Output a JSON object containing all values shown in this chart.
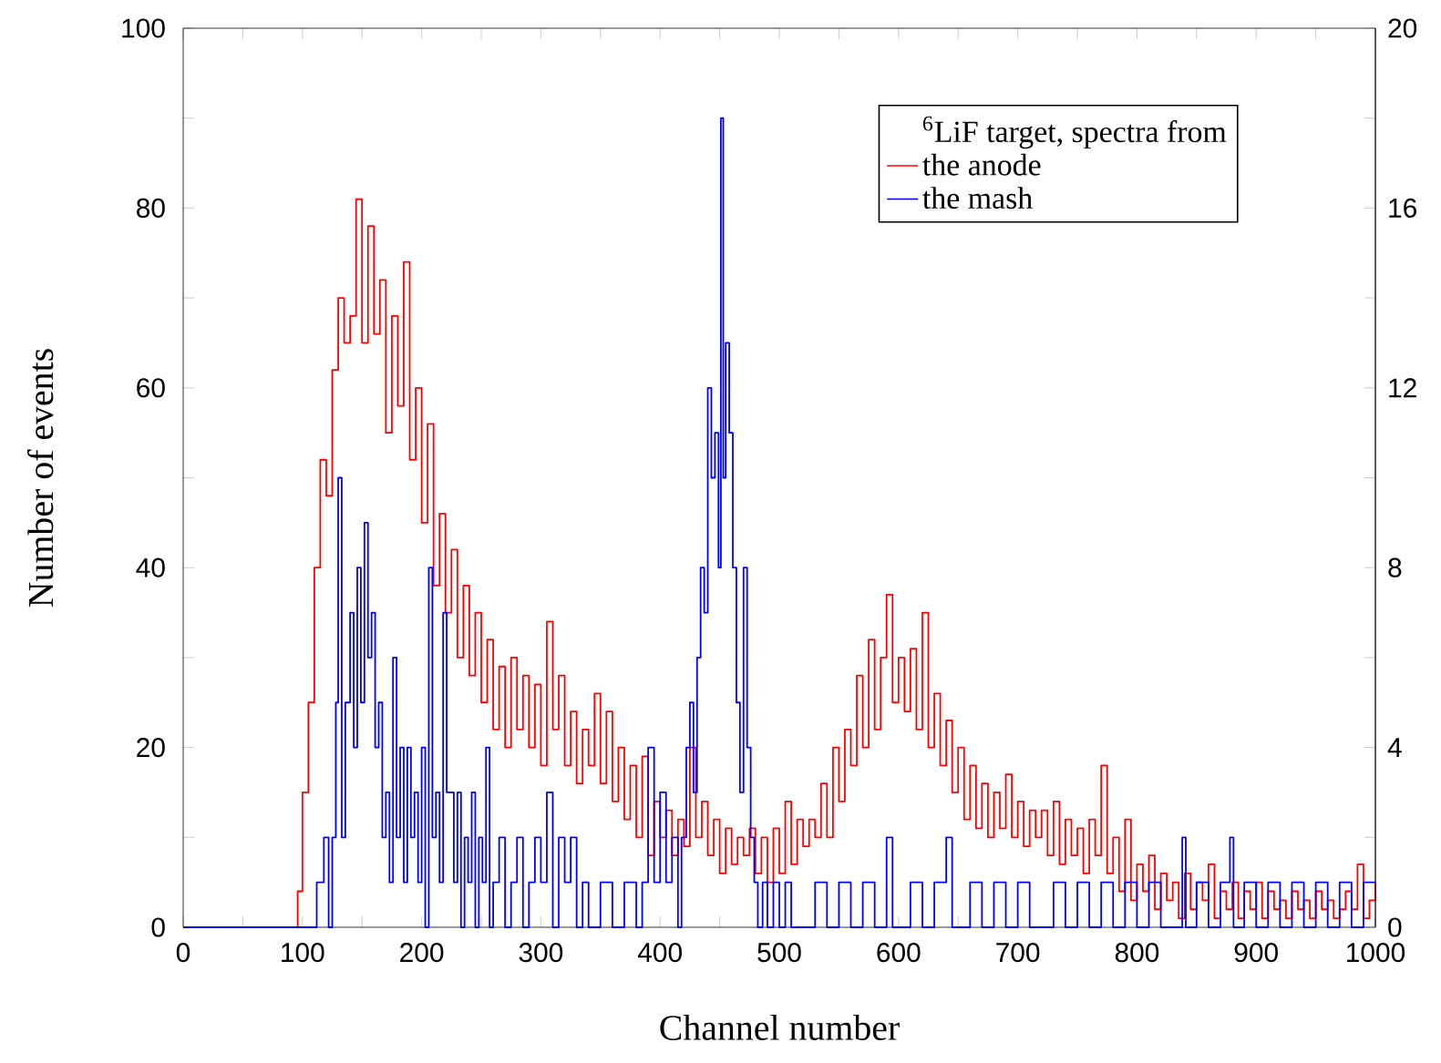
{
  "chart_data": {
    "type": "step",
    "xlabel": "Channel number",
    "ylabel": "Number of events",
    "legend_title": "$^{6}$LiF target, spectra from",
    "legend": "top right",
    "xlim": [
      0,
      1000
    ],
    "xticks": [
      0,
      {
        "value": 50,
        "label": null
      },
      100,
      {
        "value": 150,
        "label": null
      },
      200,
      {
        "value": 250,
        "label": null
      },
      300,
      {
        "value": 350,
        "label": null
      },
      400,
      {
        "value": 450,
        "label": null
      },
      500,
      {
        "value": 550,
        "label": null
      },
      600,
      {
        "value": 650,
        "label": null
      },
      700,
      {
        "value": 750,
        "label": null
      },
      800,
      {
        "value": 850,
        "label": null
      },
      900,
      {
        "value": 950,
        "label": null
      },
      1000
    ],
    "ylim": [
      0,
      100
    ],
    "yticks": [
      0,
      {
        "value": 10,
        "label": null
      },
      20,
      {
        "value": 30,
        "label": null
      },
      40,
      {
        "value": 50,
        "label": null
      },
      60,
      {
        "value": 70,
        "label": null
      },
      80,
      {
        "value": 90,
        "label": null
      },
      100
    ],
    "y2lim": [
      0,
      20
    ],
    "y2ticks": [
      0,
      {
        "value": 2,
        "label": null
      },
      4,
      {
        "value": 6,
        "label": null
      },
      8,
      {
        "value": 10,
        "label": null
      },
      12,
      {
        "value": 14,
        "label": null
      },
      16,
      {
        "value": 18,
        "label": null
      },
      20
    ],
    "series": [
      {
        "name": "the anode",
        "color": "#ff0000",
        "x": [
          0,
          95,
          96,
          100,
          105,
          110,
          115,
          120,
          125,
          130,
          135,
          140,
          145,
          150,
          155,
          160,
          165,
          170,
          175,
          180,
          185,
          190,
          195,
          200,
          205,
          210,
          215,
          220,
          225,
          230,
          235,
          240,
          245,
          250,
          255,
          260,
          265,
          270,
          275,
          280,
          285,
          290,
          295,
          300,
          305,
          310,
          315,
          320,
          325,
          330,
          335,
          340,
          345,
          350,
          355,
          360,
          365,
          370,
          375,
          380,
          385,
          390,
          395,
          400,
          405,
          410,
          415,
          420,
          425,
          430,
          435,
          440,
          445,
          450,
          455,
          460,
          465,
          470,
          475,
          480,
          485,
          490,
          495,
          500,
          505,
          510,
          515,
          520,
          525,
          530,
          535,
          540,
          545,
          550,
          555,
          560,
          565,
          570,
          575,
          580,
          585,
          590,
          595,
          600,
          605,
          610,
          615,
          620,
          625,
          630,
          635,
          640,
          645,
          650,
          655,
          660,
          665,
          670,
          675,
          680,
          685,
          690,
          695,
          700,
          705,
          710,
          715,
          720,
          725,
          730,
          735,
          740,
          745,
          750,
          755,
          760,
          765,
          770,
          775,
          780,
          785,
          790,
          795,
          800,
          805,
          810,
          815,
          820,
          825,
          830,
          835,
          840,
          845,
          850,
          855,
          860,
          865,
          870,
          875,
          880,
          885,
          890,
          895,
          900,
          905,
          910,
          915,
          920,
          925,
          930,
          935,
          940,
          945,
          950,
          955,
          960,
          965,
          970,
          975,
          980,
          985,
          990,
          995,
          1000
        ],
        "values": [
          0,
          0,
          4,
          15,
          25,
          40,
          52,
          48,
          62,
          70,
          65,
          68,
          81,
          65,
          78,
          66,
          72,
          55,
          68,
          58,
          74,
          52,
          60,
          45,
          56,
          38,
          46,
          35,
          42,
          30,
          38,
          28,
          35,
          25,
          32,
          22,
          29,
          20,
          30,
          22,
          28,
          20,
          27,
          18,
          34,
          22,
          28,
          18,
          24,
          16,
          22,
          18,
          26,
          16,
          24,
          14,
          20,
          12,
          18,
          10,
          19,
          8,
          14,
          10,
          13,
          8,
          12,
          9,
          20,
          10,
          14,
          8,
          12,
          6,
          11,
          7,
          10,
          8,
          11,
          6,
          10,
          5,
          11,
          6,
          14,
          7,
          12,
          9,
          12,
          10,
          16,
          10,
          20,
          14,
          22,
          18,
          28,
          20,
          32,
          22,
          30,
          37,
          25,
          30,
          24,
          31,
          22,
          35,
          20,
          26,
          18,
          23,
          15,
          20,
          12,
          18,
          11,
          16,
          10,
          15,
          11,
          17,
          10,
          14,
          9,
          13,
          10,
          13,
          8,
          14,
          7,
          12,
          8,
          11,
          6,
          12,
          8,
          18,
          6,
          10,
          4,
          12,
          3,
          7,
          4,
          8,
          2,
          6,
          3,
          5,
          1,
          6,
          2,
          5,
          3,
          7,
          1,
          4,
          2,
          5,
          1,
          4,
          2,
          5,
          1,
          4,
          2,
          3,
          1,
          4,
          2,
          3,
          1,
          4,
          2,
          3,
          1,
          2,
          4,
          2,
          7,
          1,
          3,
          5
        ]
      },
      {
        "name": "the mash",
        "color": "#0000ff",
        "axis": "y2",
        "x": [
          0,
          112,
          118,
          122,
          125,
          128,
          130,
          133,
          136,
          140,
          143,
          146,
          149,
          152,
          155,
          158,
          161,
          164,
          167,
          170,
          173,
          176,
          179,
          182,
          185,
          188,
          191,
          194,
          197,
          200,
          203,
          206,
          209,
          212,
          215,
          218,
          221,
          224,
          227,
          230,
          233,
          236,
          239,
          242,
          245,
          248,
          251,
          254,
          257,
          260,
          265,
          270,
          275,
          280,
          285,
          290,
          295,
          300,
          305,
          310,
          315,
          320,
          325,
          330,
          335,
          340,
          350,
          360,
          370,
          380,
          385,
          390,
          395,
          400,
          405,
          410,
          415,
          418,
          422,
          425,
          428,
          431,
          434,
          437,
          440,
          443,
          446,
          449,
          451,
          453,
          455,
          458,
          461,
          464,
          467,
          470,
          473,
          476,
          479,
          482,
          486,
          490,
          495,
          500,
          505,
          510,
          530,
          540,
          550,
          560,
          570,
          580,
          590,
          595,
          610,
          620,
          630,
          640,
          645,
          660,
          670,
          680,
          690,
          700,
          710,
          730,
          740,
          750,
          760,
          770,
          780,
          790,
          800,
          810,
          820,
          838,
          841,
          850,
          860,
          870,
          878,
          881,
          890,
          900,
          910,
          920,
          930,
          940,
          950,
          960,
          970,
          980,
          990,
          1000
        ],
        "values": [
          0,
          1,
          2,
          0,
          2,
          5,
          10,
          2,
          5,
          7,
          4,
          8,
          5,
          9,
          6,
          7,
          4,
          5,
          2,
          3,
          1,
          6,
          2,
          4,
          1,
          4,
          2,
          3,
          1,
          4,
          0,
          8,
          2,
          3,
          1,
          7,
          3,
          3,
          1,
          3,
          0,
          2,
          1,
          3,
          0,
          2,
          1,
          4,
          0,
          1,
          2,
          0,
          1,
          2,
          0,
          1,
          2,
          1,
          3,
          0,
          2,
          1,
          2,
          0,
          1,
          0,
          1,
          0,
          1,
          0,
          1,
          4,
          1,
          3,
          1,
          2,
          0,
          2,
          4,
          5,
          3,
          6,
          8,
          7,
          12,
          10,
          11,
          8,
          18,
          10,
          13,
          11,
          8,
          5,
          3,
          8,
          4,
          2,
          1,
          0,
          1,
          0,
          1,
          0,
          1,
          0,
          1,
          0,
          1,
          0,
          1,
          0,
          2,
          0,
          1,
          0,
          1,
          2,
          0,
          1,
          0,
          1,
          0,
          1,
          0,
          1,
          0,
          1,
          0,
          1,
          0,
          1,
          0,
          1,
          0,
          2,
          0,
          1,
          0,
          1,
          2,
          0,
          1,
          0,
          1,
          0,
          1,
          0,
          1,
          0,
          1,
          0,
          1,
          1
        ]
      }
    ]
  }
}
